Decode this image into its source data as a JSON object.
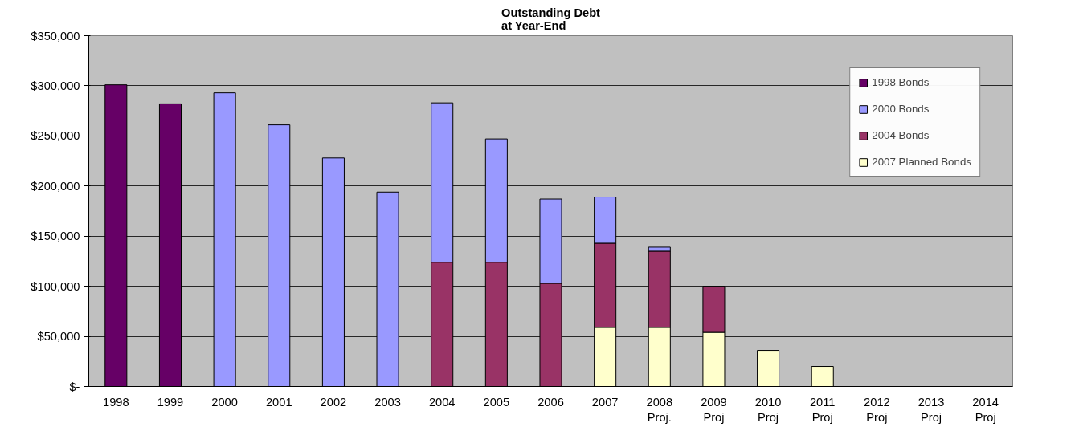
{
  "chart_data": {
    "type": "bar",
    "title": "Outstanding Debt\nat Year-End",
    "stacked": true,
    "categories": [
      "1998",
      "1999",
      "2000",
      "2001",
      "2002",
      "2003",
      "2004",
      "2005",
      "2006",
      "2007",
      "2008\nProj.",
      "2009\nProj",
      "2010\nProj",
      "2011\nProj",
      "2012\nProj",
      "2013\nProj",
      "2014\nProj"
    ],
    "series": [
      {
        "name": "2007 Planned Bonds",
        "color": "#ffffcc",
        "values": [
          null,
          null,
          null,
          null,
          null,
          null,
          null,
          null,
          null,
          59000,
          59000,
          54000,
          36000,
          20000,
          null,
          null,
          null
        ]
      },
      {
        "name": "2004 Bonds",
        "color": "#993366",
        "values": [
          null,
          null,
          null,
          null,
          null,
          null,
          124000,
          124000,
          103000,
          84000,
          76000,
          46000,
          null,
          null,
          null,
          null,
          null
        ]
      },
      {
        "name": "2000 Bonds",
        "color": "#9999ff",
        "values": [
          null,
          null,
          293000,
          261000,
          228000,
          194000,
          159000,
          123000,
          84000,
          46000,
          4000,
          null,
          null,
          null,
          null,
          null,
          null
        ]
      },
      {
        "name": "1998 Bonds",
        "color": "#660066",
        "values": [
          301000,
          282000,
          null,
          null,
          null,
          null,
          null,
          null,
          null,
          null,
          null,
          null,
          null,
          null,
          null,
          null,
          null
        ]
      }
    ],
    "ylim": [
      0,
      350000
    ],
    "yticks": [
      {
        "value": 0,
        "label": "$-"
      },
      {
        "value": 50000,
        "label": "$50,000"
      },
      {
        "value": 100000,
        "label": "$100,000"
      },
      {
        "value": 150000,
        "label": "$150,000"
      },
      {
        "value": 200000,
        "label": "$200,000"
      },
      {
        "value": 250000,
        "label": "$250,000"
      },
      {
        "value": 300000,
        "label": "$300,000"
      },
      {
        "value": 350000,
        "label": "$350,000"
      }
    ],
    "grid": "y",
    "legend": "top right"
  }
}
